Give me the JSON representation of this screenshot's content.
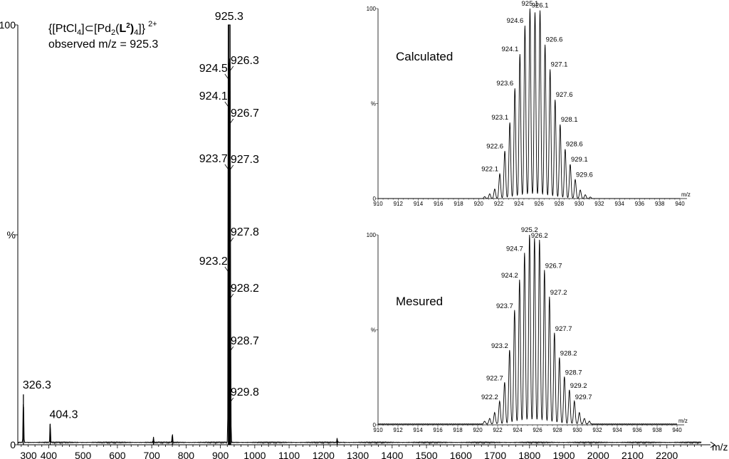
{
  "chart_data": [
    {
      "id": "main",
      "type": "line",
      "title": "",
      "xlabel": "m/z",
      "ylabel": "%",
      "xlim": [
        310,
        2300
      ],
      "ylim": [
        0,
        100
      ],
      "xticks": [
        300,
        400,
        500,
        600,
        700,
        800,
        900,
        1000,
        1100,
        1200,
        1300,
        1400,
        1500,
        1600,
        1700,
        1800,
        1900,
        2000,
        2100,
        2200
      ],
      "ytick_labels": [
        "100",
        "%",
        "0"
      ],
      "annotation": {
        "formula_parts": [
          "{[PtCl",
          "4",
          "]⊂[Pd",
          "2",
          "(",
          "L",
          "2",
          ")",
          "4",
          "]}",
          "2+"
        ],
        "observed": "observed m/z = 925.3"
      },
      "major_peaks": [
        {
          "label": "326.3",
          "mz": 326.3,
          "intensity": 12
        },
        {
          "label": "404.3",
          "mz": 404.3,
          "intensity": 5
        }
      ],
      "cluster": {
        "peaks": [
          {
            "label": "923.2",
            "mz": 923.2,
            "intensity": 42
          },
          {
            "label": "923.7",
            "mz": 923.7,
            "intensity": 65
          },
          {
            "label": "924.1",
            "mz": 924.1,
            "intensity": 80
          },
          {
            "label": "924.5",
            "mz": 924.5,
            "intensity": 91
          },
          {
            "label": "925.3",
            "mz": 925.3,
            "intensity": 100
          },
          {
            "label": "926.3",
            "mz": 926.3,
            "intensity": 92
          },
          {
            "label": "926.7",
            "mz": 926.7,
            "intensity": 78
          },
          {
            "label": "927.3",
            "mz": 927.3,
            "intensity": 66
          },
          {
            "label": "927.8",
            "mz": 927.8,
            "intensity": 47
          },
          {
            "label": "928.2",
            "mz": 928.2,
            "intensity": 36
          },
          {
            "label": "928.7",
            "mz": 928.7,
            "intensity": 23
          },
          {
            "label": "929.8",
            "mz": 929.8,
            "intensity": 10
          }
        ]
      },
      "minor_peaks": [
        {
          "mz": 705,
          "intensity": 1.2
        },
        {
          "mz": 760,
          "intensity": 2.2
        },
        {
          "mz": 1240,
          "intensity": 1.0
        }
      ]
    },
    {
      "id": "calculated",
      "type": "line",
      "title": "Calculated",
      "xlabel": "m/z",
      "ylabel": "%",
      "xlim": [
        910,
        940
      ],
      "ylim": [
        0,
        100
      ],
      "xticks": [
        910,
        912,
        914,
        916,
        918,
        920,
        922,
        924,
        926,
        928,
        930,
        932,
        934,
        936,
        938,
        940
      ],
      "ytick_labels": [
        "100",
        "%",
        "0"
      ],
      "peaks": [
        {
          "label": "922.1",
          "mz": 922.1,
          "intensity": 13
        },
        {
          "label": "922.6",
          "mz": 922.6,
          "intensity": 25
        },
        {
          "label": "923.1",
          "mz": 923.1,
          "intensity": 40
        },
        {
          "label": "923.6",
          "mz": 923.6,
          "intensity": 58
        },
        {
          "label": "924.1",
          "mz": 924.1,
          "intensity": 76
        },
        {
          "label": "924.6",
          "mz": 924.6,
          "intensity": 91
        },
        {
          "label": "925.1",
          "mz": 925.1,
          "intensity": 100
        },
        {
          "label": "926.1",
          "mz": 926.1,
          "intensity": 99
        },
        {
          "label": "926.6",
          "mz": 926.6,
          "intensity": 81
        },
        {
          "label": "927.1",
          "mz": 927.1,
          "intensity": 68
        },
        {
          "label": "927.6",
          "mz": 927.6,
          "intensity": 52
        },
        {
          "label": "928.1",
          "mz": 928.1,
          "intensity": 39
        },
        {
          "label": "928.6",
          "mz": 928.6,
          "intensity": 26
        },
        {
          "label": "929.1",
          "mz": 929.1,
          "intensity": 18
        },
        {
          "label": "929.6",
          "mz": 929.6,
          "intensity": 10
        }
      ],
      "unlabeled_peaks": [
        {
          "mz": 920.6,
          "intensity": 1
        },
        {
          "mz": 921.1,
          "intensity": 2.5
        },
        {
          "mz": 921.6,
          "intensity": 5
        },
        {
          "mz": 925.6,
          "intensity": 98
        },
        {
          "mz": 930.1,
          "intensity": 4.5
        },
        {
          "mz": 930.6,
          "intensity": 2
        },
        {
          "mz": 931.1,
          "intensity": 0.8
        }
      ]
    },
    {
      "id": "measured",
      "type": "line",
      "title": "Mesured",
      "xlabel": "m/z",
      "ylabel": "%",
      "xlim": [
        910,
        940
      ],
      "ylim": [
        0,
        100
      ],
      "xticks": [
        910,
        912,
        914,
        916,
        918,
        920,
        922,
        924,
        926,
        928,
        930,
        932,
        934,
        936,
        938,
        940
      ],
      "ytick_labels": [
        "100",
        "%",
        "0"
      ],
      "peaks": [
        {
          "label": "922.2",
          "mz": 922.2,
          "intensity": 12
        },
        {
          "label": "922.7",
          "mz": 922.7,
          "intensity": 22
        },
        {
          "label": "923.2",
          "mz": 923.2,
          "intensity": 39
        },
        {
          "label": "923.7",
          "mz": 923.7,
          "intensity": 60
        },
        {
          "label": "924.2",
          "mz": 924.2,
          "intensity": 76
        },
        {
          "label": "924.7",
          "mz": 924.7,
          "intensity": 90
        },
        {
          "label": "925.2",
          "mz": 925.2,
          "intensity": 100
        },
        {
          "label": "926.2",
          "mz": 926.2,
          "intensity": 97
        },
        {
          "label": "926.7",
          "mz": 926.7,
          "intensity": 81
        },
        {
          "label": "927.2",
          "mz": 927.2,
          "intensity": 67
        },
        {
          "label": "927.7",
          "mz": 927.7,
          "intensity": 48
        },
        {
          "label": "928.2",
          "mz": 928.2,
          "intensity": 35
        },
        {
          "label": "928.7",
          "mz": 928.7,
          "intensity": 25
        },
        {
          "label": "929.2",
          "mz": 929.2,
          "intensity": 18
        },
        {
          "label": "929.7",
          "mz": 929.7,
          "intensity": 12
        }
      ],
      "unlabeled_peaks": [
        {
          "mz": 920.7,
          "intensity": 1.5
        },
        {
          "mz": 921.2,
          "intensity": 3
        },
        {
          "mz": 921.7,
          "intensity": 6
        },
        {
          "mz": 925.7,
          "intensity": 98
        },
        {
          "mz": 930.2,
          "intensity": 6
        },
        {
          "mz": 930.7,
          "intensity": 3
        },
        {
          "mz": 931.2,
          "intensity": 1.5
        }
      ]
    }
  ]
}
